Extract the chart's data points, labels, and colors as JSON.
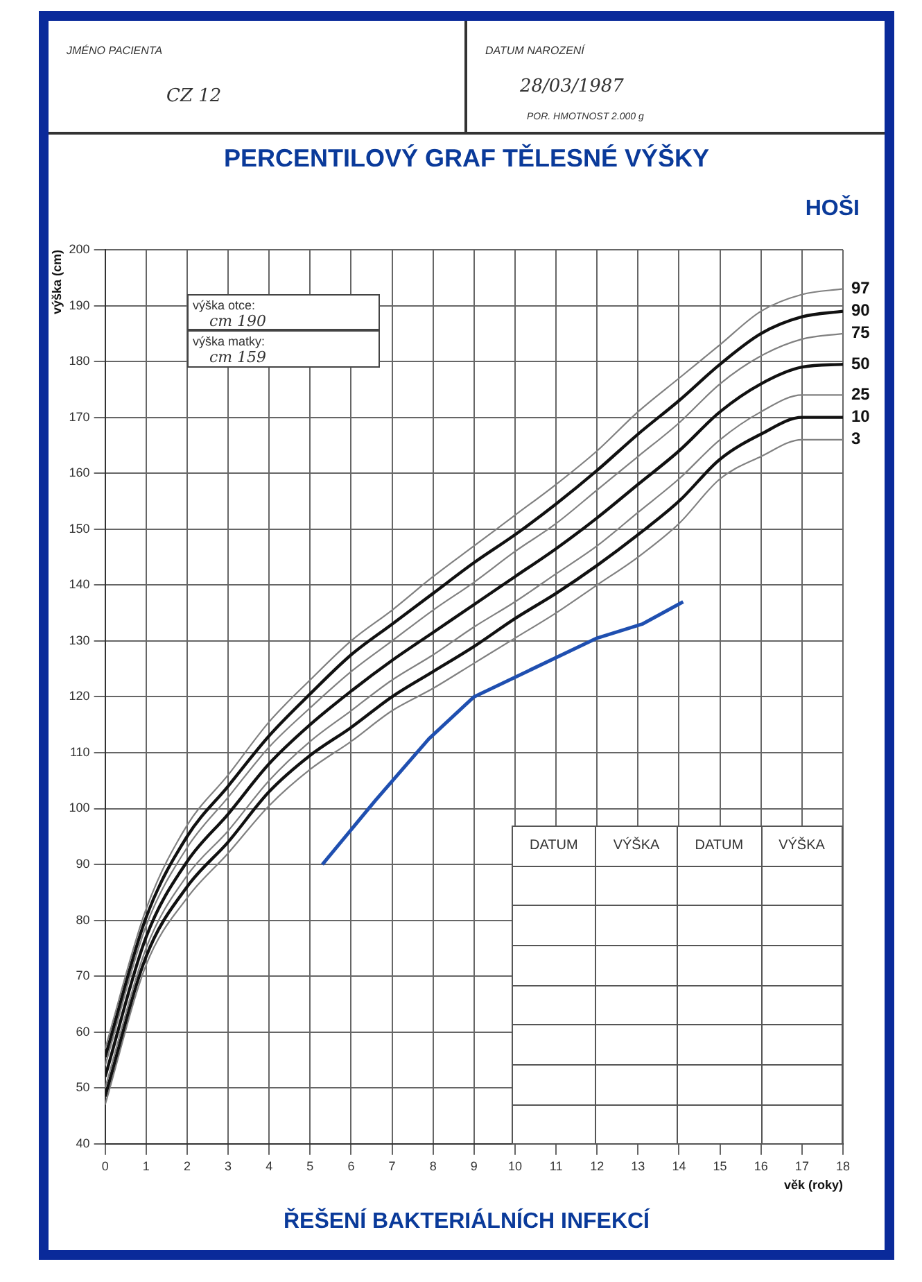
{
  "chart_data": {
    "type": "line",
    "title": "PERCENTILOVÝ GRAF TĚLESNÉ VÝŠKY",
    "subtitle": "HOŠI",
    "xlabel": "věk (roky)",
    "ylabel": "výška (cm)",
    "x": [
      0,
      1,
      2,
      3,
      4,
      5,
      6,
      7,
      8,
      9,
      10,
      11,
      12,
      13,
      14,
      15,
      16,
      17,
      18
    ],
    "xlim": [
      0,
      18
    ],
    "xticks": [
      0,
      1,
      2,
      3,
      4,
      5,
      6,
      7,
      8,
      9,
      10,
      11,
      12,
      13,
      14,
      15,
      16,
      17,
      18
    ],
    "ylim": [
      40,
      200
    ],
    "yticks": [
      40,
      50,
      60,
      70,
      80,
      90,
      100,
      110,
      120,
      130,
      140,
      150,
      160,
      170,
      180,
      190,
      200
    ],
    "grid": true,
    "legend": false,
    "marker": "none",
    "line_style": "solid",
    "series": [
      {
        "name": "97",
        "color": "#808080",
        "values": [
          57,
          82,
          97,
          106,
          115.5,
          123,
          130,
          135.5,
          141.5,
          147,
          152.5,
          158,
          164,
          171,
          177,
          183,
          189,
          192,
          193
        ]
      },
      {
        "name": "90",
        "color": "#111111",
        "values": [
          55.5,
          80.5,
          95,
          104,
          113,
          120.5,
          127.5,
          133,
          138.5,
          144,
          149,
          154.5,
          160.5,
          167,
          173,
          179.5,
          185,
          188,
          189
        ]
      },
      {
        "name": "75",
        "color": "#808080",
        "values": [
          54,
          79,
          93,
          102,
          111,
          118,
          124.5,
          130,
          135.5,
          140.5,
          146,
          151,
          157,
          163,
          169,
          176,
          181,
          184,
          185
        ]
      },
      {
        "name": "50",
        "color": "#111111",
        "values": [
          52,
          77,
          90.5,
          99,
          108,
          115,
          121,
          126.5,
          131.5,
          136.5,
          141.5,
          146.5,
          152,
          158,
          164,
          171,
          176,
          179,
          179.5
        ]
      },
      {
        "name": "25",
        "color": "#808080",
        "values": [
          50,
          75,
          88,
          96,
          105,
          112,
          117.5,
          123,
          127.5,
          132.5,
          137,
          142,
          147,
          153,
          159,
          166,
          171,
          174,
          174
        ]
      },
      {
        "name": "10",
        "color": "#111111",
        "values": [
          48.5,
          73.5,
          86,
          94,
          103,
          109.5,
          114.5,
          120,
          124.5,
          129,
          134,
          138.5,
          143.5,
          149,
          155,
          162.5,
          167,
          170,
          170
        ]
      },
      {
        "name": "3",
        "color": "#808080",
        "values": [
          47,
          72,
          84,
          92,
          100.5,
          107,
          112,
          117.5,
          121.5,
          126,
          130.5,
          135,
          140,
          145,
          151,
          159,
          163,
          166,
          166
        ]
      },
      {
        "color": "#1f4fb0",
        "x": [
          5.3,
          6.6,
          7.9,
          9,
          12,
          13.1,
          14.1
        ],
        "values": [
          90,
          101.5,
          112.5,
          120,
          130.5,
          133,
          137
        ]
      }
    ],
    "annotations": [
      "JMÉNO PACIENTA",
      "CZ 12",
      "DATUM NAROZENÍ",
      "28/03/1987",
      "POR. HMOTNOST 2.000 g",
      "výška otce:",
      "cm 190",
      "výška matky:",
      "cm 159",
      "DATUM",
      "VÝŠKA",
      "DATUM",
      "VÝŠKA",
      "ŘEŠENÍ BAKTERIÁLNÍCH INFEKCÍ"
    ]
  }
}
